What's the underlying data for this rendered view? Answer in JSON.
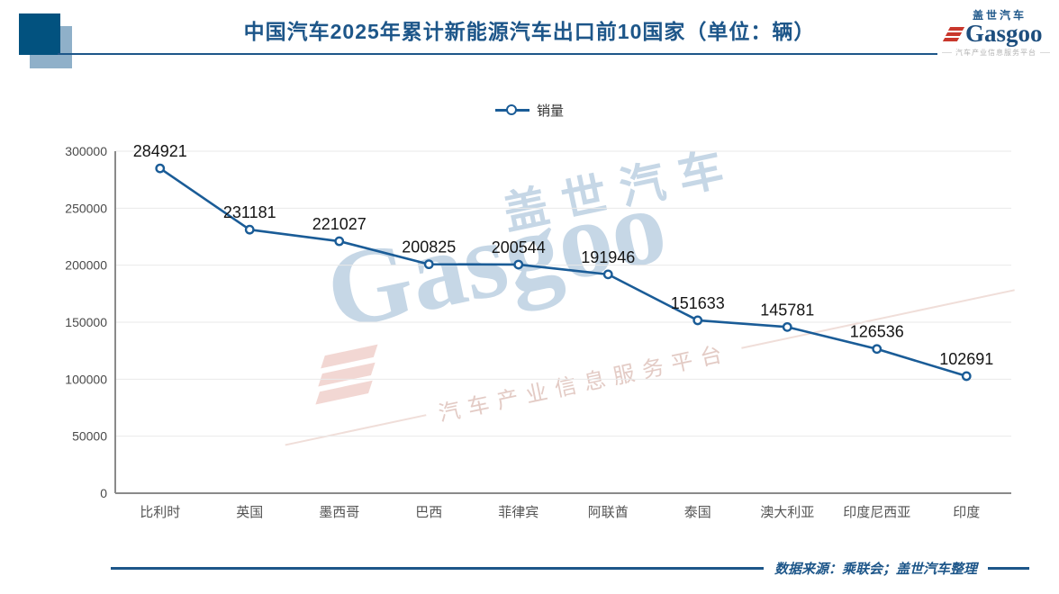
{
  "page": {
    "title": "中国汽车2025年累计新能源汽车出口前10国家（单位：辆）",
    "accent_color": "#1d5689"
  },
  "logo": {
    "cn": "盖世汽车",
    "en": "Gasgoo",
    "tagline": "汽车产业信息服务平台"
  },
  "legend": {
    "label": "销量"
  },
  "watermark": {
    "cn": "盖世汽车",
    "en": "Gasgoo",
    "tagline": "汽车产业信息服务平台"
  },
  "footer": {
    "source": "数据来源：乘联会；盖世汽车整理"
  },
  "chart_data": {
    "type": "line",
    "title": "中国汽车2025年累计新能源汽车出口前10国家（单位：辆）",
    "series_name": "销量",
    "categories": [
      "比利时",
      "英国",
      "墨西哥",
      "巴西",
      "菲律宾",
      "阿联酋",
      "泰国",
      "澳大利亚",
      "印度尼西亚",
      "印度"
    ],
    "values": [
      284921,
      231181,
      221027,
      200825,
      200544,
      191946,
      151633,
      145781,
      126536,
      102691
    ],
    "ylabel": "",
    "xlabel": "",
    "ylim": [
      0,
      300000
    ],
    "ytick_step": 50000,
    "yticks": [
      0,
      50000,
      100000,
      150000,
      200000,
      250000,
      300000
    ],
    "grid": true,
    "legend_position": "top",
    "line_color": "#1a5c97",
    "marker": "circle-open",
    "data_labels": true
  }
}
